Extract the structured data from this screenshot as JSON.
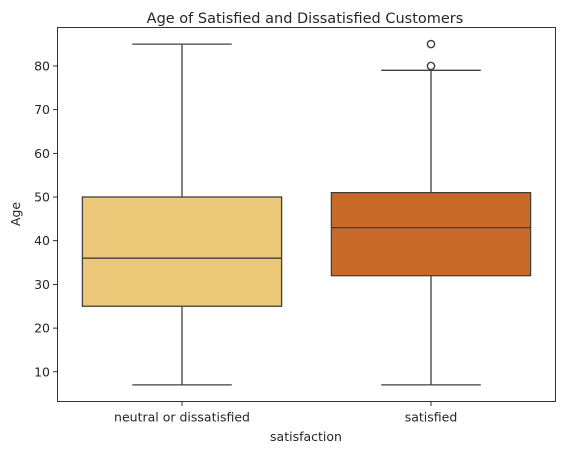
{
  "chart_data": {
    "type": "box",
    "title": "Age of Satisfied and Dissatisfied Customers",
    "xlabel": "satisfaction",
    "ylabel": "Age",
    "categories": [
      "neutral or dissatisfied",
      "satisfied"
    ],
    "ylim": [
      3.2,
      88.8
    ],
    "yticks": [
      10,
      20,
      30,
      40,
      50,
      60,
      70,
      80
    ],
    "boxes": [
      {
        "category": "neutral or dissatisfied",
        "whisker_low": 7,
        "q1": 25,
        "median": 36,
        "q3": 50,
        "whisker_high": 85,
        "outliers": [],
        "color": "#ECC978"
      },
      {
        "category": "satisfied",
        "whisker_low": 7,
        "q1": 32,
        "median": 43,
        "q3": 51,
        "whisker_high": 79,
        "outliers": [
          80,
          85
        ],
        "color": "#C86A29"
      }
    ],
    "line_color": "#3f3f3f",
    "grid": false,
    "legend": "none"
  }
}
